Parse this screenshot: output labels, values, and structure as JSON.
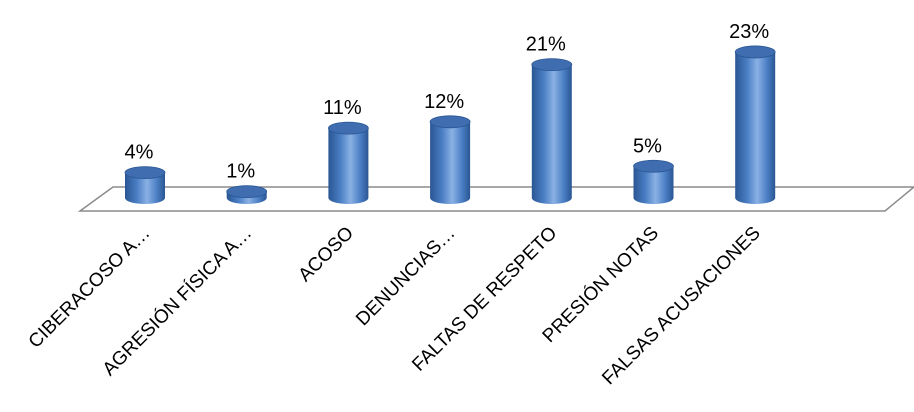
{
  "chart_data": {
    "type": "bar",
    "style": "3d-cylinder",
    "categories": [
      "CIBERACOSO A…",
      "AGRESIÓN FÍSICA A…",
      "ACOSO",
      "DENUNCIAS…",
      "FALTAS DE RESPETO",
      "PRESIÓN NOTAS",
      "FALSAS ACUSACIONES"
    ],
    "values": [
      4,
      1,
      11,
      12,
      21,
      5,
      23
    ],
    "value_labels": [
      "4%",
      "1%",
      "11%",
      "12%",
      "21%",
      "5%",
      "23%"
    ],
    "unit": "%",
    "title": "",
    "xlabel": "",
    "ylabel": "",
    "ylim": [
      0,
      25
    ],
    "grid": false,
    "legend": "none",
    "category_label_rotation": "-45deg",
    "colors": {
      "bar": "#4a7ec4",
      "bar_dark": "#2a5693",
      "bar_light": "#8ab1e4",
      "bar_top": "#3f6db0",
      "floor_stroke": "#8c8c8c"
    }
  }
}
